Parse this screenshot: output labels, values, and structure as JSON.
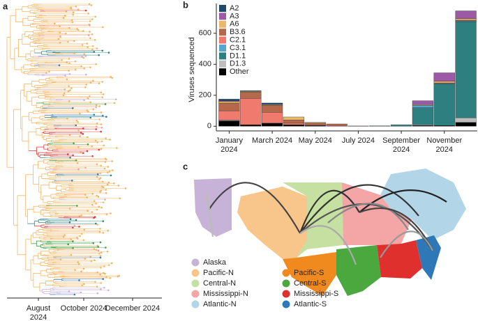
{
  "panel_labels": [
    "a",
    "b",
    "c"
  ],
  "tree": {
    "x_labels": [
      "August 2024",
      "October 2024",
      "December 2024"
    ]
  },
  "chart_data": {
    "type": "bar",
    "stacked": true,
    "y_label": "Viruses sequenced",
    "categories": [
      "January 2024",
      null,
      "March 2024",
      null,
      "May 2024",
      null,
      "July 2024",
      null,
      "September 2024",
      null,
      "November 2024",
      null
    ],
    "series": [
      {
        "name": "A2",
        "color": "#1d4a6b",
        "values": [
          10,
          5,
          10,
          0,
          0,
          0,
          0,
          0,
          0,
          0,
          0,
          0
        ]
      },
      {
        "name": "A3",
        "color": "#9b59a6",
        "values": [
          5,
          0,
          0,
          0,
          0,
          0,
          0,
          0,
          0,
          25,
          55,
          50
        ]
      },
      {
        "name": "A6",
        "color": "#e8b96a",
        "values": [
          10,
          5,
          5,
          20,
          5,
          0,
          0,
          0,
          0,
          5,
          10,
          10
        ]
      },
      {
        "name": "B3.6",
        "color": "#b5694a",
        "values": [
          50,
          40,
          45,
          20,
          10,
          10,
          2,
          0,
          0,
          0,
          5,
          5
        ]
      },
      {
        "name": "C2.1",
        "color": "#f07a6e",
        "values": [
          60,
          170,
          70,
          10,
          5,
          5,
          0,
          0,
          0,
          0,
          0,
          0
        ]
      },
      {
        "name": "C3.1",
        "color": "#56a6d0",
        "values": [
          0,
          0,
          0,
          0,
          0,
          0,
          0,
          0,
          0,
          15,
          0,
          5
        ]
      },
      {
        "name": "D1.1",
        "color": "#2e8080",
        "values": [
          0,
          0,
          0,
          0,
          0,
          0,
          0,
          3,
          10,
          110,
          270,
          620
        ]
      },
      {
        "name": "D1.3",
        "color": "#bdbdbd",
        "values": [
          5,
          0,
          0,
          0,
          0,
          0,
          0,
          0,
          0,
          5,
          0,
          30
        ]
      },
      {
        "name": "Other",
        "color": "#000000",
        "values": [
          35,
          10,
          20,
          10,
          5,
          0,
          0,
          0,
          0,
          5,
          5,
          25
        ]
      }
    ],
    "ylim": [
      -30,
      770
    ],
    "yticks": [
      0,
      200,
      400,
      600
    ]
  },
  "map": {
    "legend": [
      {
        "name": "Alaska",
        "color": "#c8b3d8"
      },
      {
        "name": "Pacific-N",
        "color": "#f8c68a"
      },
      {
        "name": "Central-N",
        "color": "#c5e0a0"
      },
      {
        "name": "Mississippi-N",
        "color": "#f4a6a6"
      },
      {
        "name": "Atlantic-N",
        "color": "#b3d5e8"
      },
      {
        "name": "Pacific-S",
        "color": "#f08a1e"
      },
      {
        "name": "Central-S",
        "color": "#4aa83e"
      },
      {
        "name": "Mississippi-S",
        "color": "#e0302e"
      },
      {
        "name": "Atlantic-S",
        "color": "#2e78b8"
      }
    ]
  }
}
